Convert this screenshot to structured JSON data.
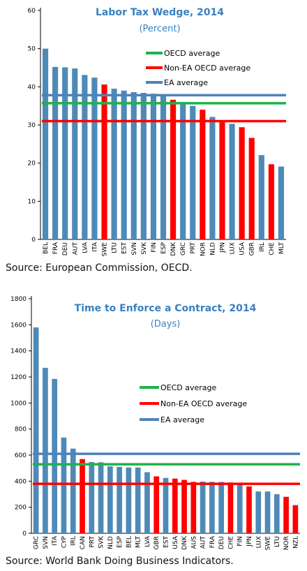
{
  "chart_data": [
    {
      "type": "bar",
      "title": "Labor Tax Wedge, 2014",
      "subtitle": "(Percent)",
      "categories": [
        "BEL",
        "FRA",
        "DEU",
        "AUT",
        "LVA",
        "ITA",
        "SWE",
        "LTU",
        "EST",
        "SVN",
        "SVK",
        "FIN",
        "ESP",
        "DNK",
        "GRC",
        "PRT",
        "NOR",
        "NLD",
        "JPN",
        "LUX",
        "USA",
        "GBR",
        "IRL",
        "CHE",
        "MLT"
      ],
      "values": [
        50.0,
        45.2,
        45.1,
        44.8,
        43.1,
        42.4,
        40.6,
        39.5,
        39.0,
        38.6,
        38.4,
        38.2,
        37.5,
        36.6,
        36.0,
        35.0,
        34.0,
        32.1,
        30.8,
        30.3,
        29.4,
        26.6,
        22.1,
        19.7,
        19.1
      ],
      "highlight": [
        false,
        false,
        false,
        false,
        false,
        false,
        true,
        false,
        false,
        false,
        false,
        false,
        false,
        true,
        false,
        false,
        true,
        false,
        true,
        false,
        true,
        true,
        false,
        true,
        false
      ],
      "ylim": [
        0,
        60
      ],
      "yticks": [
        "0",
        "10",
        "20",
        "30",
        "40",
        "50",
        "60"
      ],
      "averages": [
        {
          "name": "OECD average",
          "value": 35.7,
          "color": "#1eb24a"
        },
        {
          "name": "Non-EA OECD average",
          "value": 31.0,
          "color": "#ff0000"
        },
        {
          "name": "EA average",
          "value": 37.8,
          "color": "#4f81bd"
        }
      ],
      "colors": {
        "bar": "#4e8ab7",
        "highlight": "#ff0000",
        "title": "#3a80c1"
      },
      "legend_position": "upper-right",
      "grid": false,
      "source": "Source: European Commission, OECD."
    },
    {
      "type": "bar",
      "title": "Time to Enforce a Contract, 2014",
      "subtitle": "(Days)",
      "categories": [
        "GRC",
        "SVN",
        "ITA",
        "CYP",
        "IRL",
        "CAN",
        "PRT",
        "SVK",
        "NLD",
        "ESP",
        "BEL",
        "MLT",
        "LVA",
        "GBR",
        "EST",
        "USA",
        "DNK",
        "AUS",
        "AUT",
        "FRA",
        "DEU",
        "CHE",
        "FIN",
        "JPN",
        "LUX",
        "SWE",
        "LTU",
        "NOR",
        "NZL"
      ],
      "values": [
        1580,
        1270,
        1185,
        735,
        650,
        570,
        547,
        545,
        514,
        510,
        505,
        505,
        469,
        437,
        425,
        420,
        410,
        395,
        397,
        395,
        394,
        390,
        375,
        360,
        321,
        321,
        300,
        280,
        216
      ],
      "highlight": [
        false,
        false,
        false,
        false,
        false,
        true,
        false,
        false,
        false,
        false,
        false,
        false,
        false,
        true,
        false,
        true,
        true,
        true,
        false,
        false,
        false,
        true,
        false,
        true,
        false,
        false,
        false,
        true,
        true
      ],
      "ylim": [
        0,
        1800
      ],
      "yticks": [
        "0",
        "200",
        "400",
        "600",
        "800",
        "1000",
        "1200",
        "1400",
        "1600",
        "1800"
      ],
      "averages": [
        {
          "name": "OECD average",
          "value": 530,
          "color": "#1eb24a"
        },
        {
          "name": "Non-EA OECD average",
          "value": 380,
          "color": "#ff0000"
        },
        {
          "name": "EA average",
          "value": 610,
          "color": "#4f81bd"
        }
      ],
      "colors": {
        "bar": "#4e8ab7",
        "highlight": "#ff0000",
        "title": "#3a80c1"
      },
      "legend_position": "center-right",
      "grid": false,
      "source": "Source: World Bank Doing Business Indicators."
    }
  ]
}
